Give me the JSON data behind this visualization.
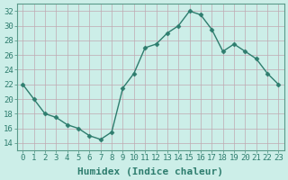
{
  "x": [
    0,
    1,
    2,
    3,
    4,
    5,
    6,
    7,
    8,
    9,
    10,
    11,
    12,
    13,
    14,
    15,
    16,
    17,
    18,
    19,
    20,
    21,
    22,
    23
  ],
  "y": [
    22,
    20,
    18,
    17.5,
    16.5,
    16,
    15,
    14.5,
    15.5,
    21.5,
    23.5,
    27,
    27.5,
    29,
    30,
    32,
    31.5,
    29.5,
    26.5,
    27.5,
    26.5,
    25.5,
    23.5,
    22
  ],
  "line_color": "#2e7d6e",
  "marker": "D",
  "marker_size": 2.5,
  "bg_color": "#cceee8",
  "grid_color": "#c0a8b0",
  "xlabel": "Humidex (Indice chaleur)",
  "ylabel": "",
  "xlim": [
    -0.5,
    23.5
  ],
  "ylim": [
    13,
    33
  ],
  "yticks": [
    14,
    16,
    18,
    20,
    22,
    24,
    26,
    28,
    30,
    32
  ],
  "xtick_labels": [
    "0",
    "1",
    "2",
    "3",
    "4",
    "5",
    "6",
    "7",
    "8",
    "9",
    "10",
    "11",
    "12",
    "13",
    "14",
    "15",
    "16",
    "17",
    "18",
    "19",
    "20",
    "21",
    "22",
    "23"
  ],
  "xlabel_fontsize": 8,
  "tick_fontsize": 6.5,
  "tick_color": "#2e7d6e",
  "spine_color": "#5a9a8a",
  "line_width": 1.0
}
